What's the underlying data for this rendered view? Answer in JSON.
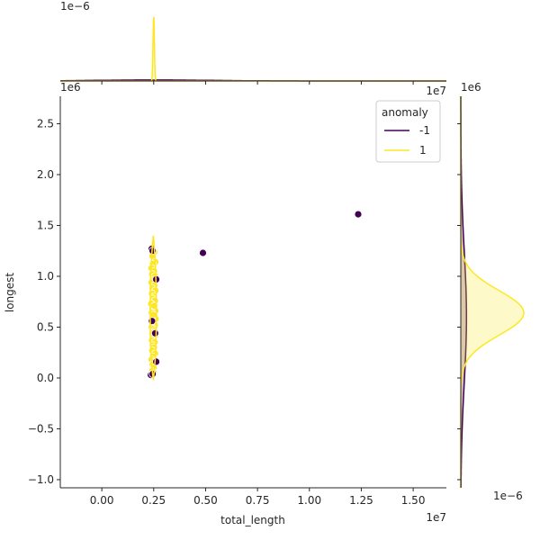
{
  "chart_data": {
    "type": "scatter",
    "title": "",
    "xlabel": "total_length",
    "ylabel": "longest",
    "x_offset_label": "1e7",
    "y_offset_label": "1e6",
    "top_marginal_offset_label": "1e−6",
    "right_marginal_offset_label": "1e−6",
    "right_marginal_y_offset_label": "1e6",
    "top_marginal_x_offset_label": "1e7",
    "xlim": [
      -0.2,
      1.66
    ],
    "ylim": [
      -1.08,
      2.77
    ],
    "x_units": "1e7",
    "y_units": "1e6",
    "x_ticks": [
      {
        "value": 0.0,
        "label": "0.00"
      },
      {
        "value": 0.25,
        "label": "0.25"
      },
      {
        "value": 0.5,
        "label": "0.50"
      },
      {
        "value": 0.75,
        "label": "0.75"
      },
      {
        "value": 1.0,
        "label": "1.00"
      },
      {
        "value": 1.25,
        "label": "1.25"
      },
      {
        "value": 1.5,
        "label": "1.50"
      }
    ],
    "y_ticks": [
      {
        "value": -1.0,
        "label": "−1.0"
      },
      {
        "value": -0.5,
        "label": "−0.5"
      },
      {
        "value": 0.0,
        "label": "0.0"
      },
      {
        "value": 0.5,
        "label": "0.5"
      },
      {
        "value": 1.0,
        "label": "1.0"
      },
      {
        "value": 1.5,
        "label": "1.5"
      },
      {
        "value": 2.0,
        "label": "2.0"
      },
      {
        "value": 2.5,
        "label": "2.5"
      }
    ],
    "grid": false,
    "legend": {
      "title": "anomaly",
      "placement": "top-right"
    },
    "hue": "anomaly",
    "series": [
      {
        "name": "-1",
        "color": "#440154",
        "points": [
          [
            0.487,
            1.23
          ],
          [
            1.235,
            1.61
          ],
          [
            0.24,
            1.27
          ],
          [
            0.245,
            1.25
          ],
          [
            0.262,
            0.97
          ],
          [
            0.257,
            0.44
          ],
          [
            0.236,
            0.03
          ],
          [
            0.245,
            0.04
          ],
          [
            0.262,
            0.16
          ],
          [
            0.242,
            0.56
          ]
        ]
      },
      {
        "name": "1",
        "color": "#fde725",
        "points": [
          [
            0.24,
            1.28
          ],
          [
            0.252,
            1.24
          ],
          [
            0.244,
            1.2
          ],
          [
            0.257,
            1.14
          ],
          [
            0.246,
            1.12
          ],
          [
            0.239,
            1.08
          ],
          [
            0.251,
            1.05
          ],
          [
            0.243,
            1.02
          ],
          [
            0.256,
            1.0
          ],
          [
            0.248,
            0.96
          ],
          [
            0.24,
            0.94
          ],
          [
            0.253,
            0.91
          ],
          [
            0.245,
            0.88
          ],
          [
            0.258,
            0.86
          ],
          [
            0.242,
            0.83
          ],
          [
            0.25,
            0.8
          ],
          [
            0.246,
            0.78
          ],
          [
            0.255,
            0.76
          ],
          [
            0.238,
            0.73
          ],
          [
            0.249,
            0.7
          ],
          [
            0.244,
            0.68
          ],
          [
            0.257,
            0.66
          ],
          [
            0.241,
            0.64
          ],
          [
            0.252,
            0.62
          ],
          [
            0.246,
            0.6
          ],
          [
            0.259,
            0.58
          ],
          [
            0.243,
            0.56
          ],
          [
            0.25,
            0.54
          ],
          [
            0.255,
            0.52
          ],
          [
            0.24,
            0.5
          ],
          [
            0.247,
            0.48
          ],
          [
            0.253,
            0.46
          ],
          [
            0.244,
            0.44
          ],
          [
            0.258,
            0.42
          ],
          [
            0.249,
            0.4
          ],
          [
            0.242,
            0.37
          ],
          [
            0.254,
            0.35
          ],
          [
            0.246,
            0.32
          ],
          [
            0.251,
            0.3
          ],
          [
            0.243,
            0.27
          ],
          [
            0.256,
            0.24
          ],
          [
            0.247,
            0.21
          ],
          [
            0.24,
            0.18
          ],
          [
            0.252,
            0.16
          ],
          [
            0.245,
            0.13
          ],
          [
            0.249,
            0.1
          ],
          [
            0.243,
            0.07
          ],
          [
            0.25,
            0.05
          ],
          [
            0.247,
            0.62
          ],
          [
            0.252,
            0.71
          ]
        ]
      }
    ],
    "marginal_x": [
      {
        "series": "-1",
        "peak_density": 0.015,
        "center": 0.25,
        "spread": 0.28
      },
      {
        "series": "1",
        "peak_density": 1.0,
        "center": 0.25,
        "spread": 0.0032
      }
    ],
    "marginal_y": [
      {
        "series": "-1",
        "peak_density": 0.09,
        "center": 0.6,
        "spread": 0.65
      },
      {
        "series": "1",
        "peak_density": 1.0,
        "center": 0.64,
        "spread": 0.22
      }
    ]
  }
}
